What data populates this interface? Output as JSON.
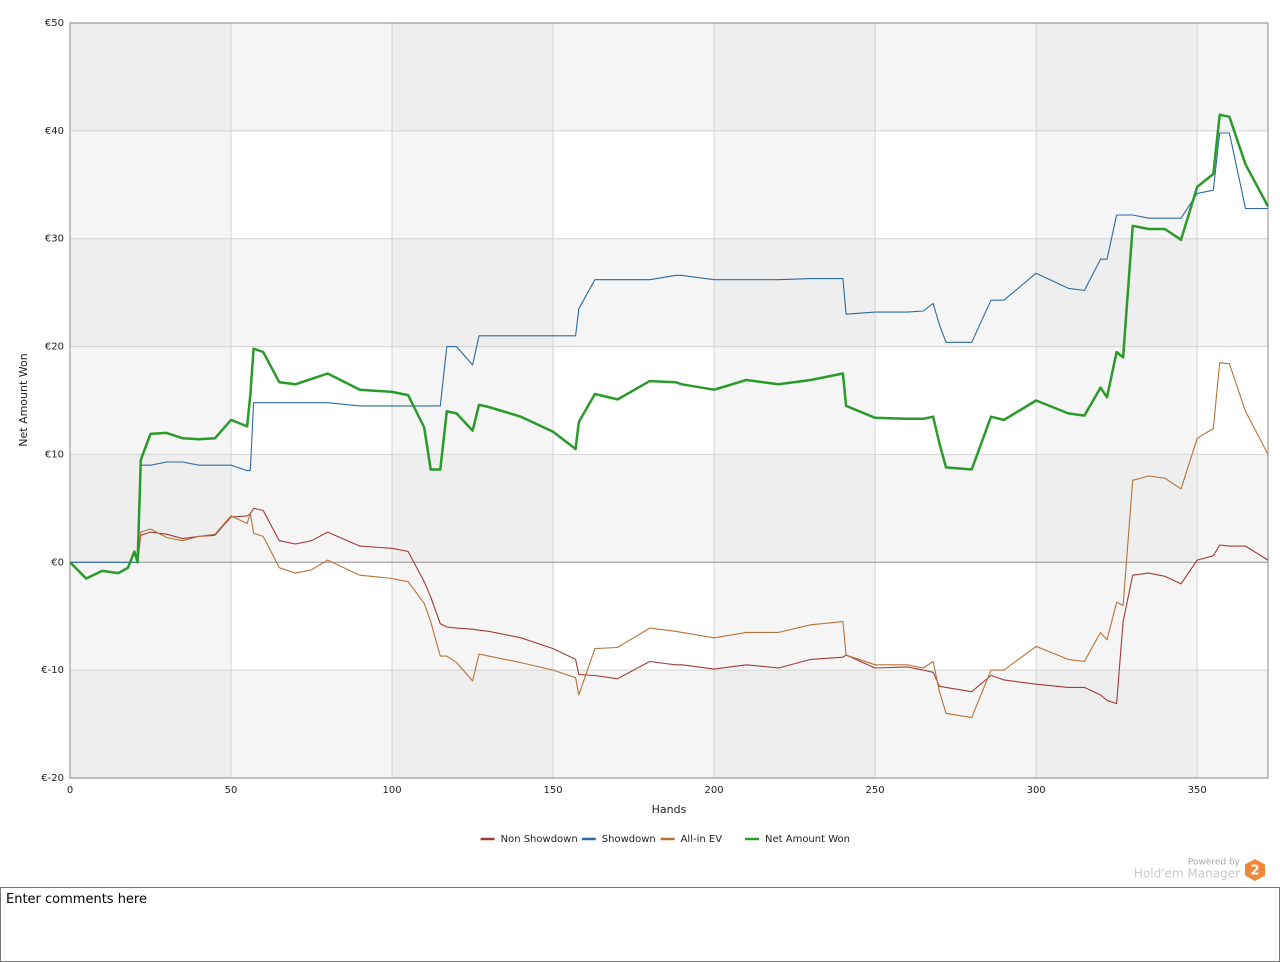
{
  "chart_data": {
    "type": "line",
    "xlabel": "Hands",
    "ylabel": "Net Amount Won",
    "xlim": [
      0,
      372
    ],
    "ylim": [
      -20,
      50
    ],
    "xticks": [
      0,
      50,
      100,
      150,
      200,
      250,
      300,
      350
    ],
    "yticks": [
      {
        "value": -20,
        "label": "€-20"
      },
      {
        "value": -10,
        "label": "€-10"
      },
      {
        "value": 0,
        "label": "€0"
      },
      {
        "value": 10,
        "label": "€10"
      },
      {
        "value": 20,
        "label": "€20"
      },
      {
        "value": 30,
        "label": "€30"
      },
      {
        "value": 40,
        "label": "€40"
      },
      {
        "value": 50,
        "label": "€50"
      }
    ],
    "grid": true,
    "legend": "bottom",
    "x": [
      0,
      5,
      10,
      15,
      18,
      20,
      21,
      22,
      25,
      30,
      35,
      40,
      45,
      50,
      55,
      56,
      57,
      60,
      65,
      70,
      75,
      80,
      90,
      100,
      105,
      110,
      112,
      115,
      117,
      120,
      125,
      127,
      130,
      140,
      150,
      157,
      158,
      163,
      170,
      180,
      188,
      190,
      200,
      210,
      220,
      230,
      240,
      241,
      250,
      260,
      265,
      268,
      270,
      272,
      280,
      286,
      290,
      300,
      310,
      315,
      320,
      322,
      325,
      327,
      330,
      335,
      340,
      345,
      350,
      355,
      357,
      360,
      365,
      372
    ],
    "series": [
      {
        "name": "Non Showdown",
        "color": "#a33a3a",
        "values": [
          0,
          -1.5,
          -0.8,
          -1,
          -0.5,
          1,
          0,
          2.5,
          2.8,
          2.6,
          2.2,
          2.4,
          2.5,
          4.2,
          4.3,
          4.5,
          5,
          4.8,
          2,
          1.7,
          2,
          2.8,
          1.5,
          1.3,
          1,
          -1.8,
          -3.2,
          -5.7,
          -6,
          -6.1,
          -6.2,
          -6.3,
          -6.4,
          -7,
          -8,
          -9,
          -10.4,
          -10.5,
          -10.8,
          -9.2,
          -9.5,
          -9.5,
          -9.9,
          -9.5,
          -9.8,
          -9,
          -8.8,
          -8.6,
          -9.8,
          -9.7,
          -10,
          -10.2,
          -11.5,
          -11.6,
          -12,
          -10.5,
          -10.9,
          -11.3,
          -11.6,
          -11.6,
          -12.3,
          -12.8,
          -13.1,
          -5.5,
          -1.2,
          -1,
          -1.3,
          -2,
          0.2,
          0.6,
          1.6,
          1.5,
          1.5,
          0.2
        ]
      },
      {
        "name": "Showdown",
        "color": "#2e6aa0",
        "values": [
          0,
          0,
          0,
          0,
          0,
          0,
          0,
          9,
          9,
          9.3,
          9.3,
          9,
          9,
          9,
          8.5,
          8.5,
          14.8,
          14.8,
          14.8,
          14.8,
          14.8,
          14.8,
          14.5,
          14.5,
          14.5,
          14.5,
          14.5,
          14.5,
          20,
          20,
          18.3,
          21,
          21,
          21,
          21,
          21,
          23.5,
          26.2,
          26.2,
          26.2,
          26.6,
          26.6,
          26.2,
          26.2,
          26.2,
          26.3,
          26.3,
          23,
          23.2,
          23.2,
          23.3,
          24,
          22,
          20.4,
          20.4,
          24.3,
          24.3,
          26.8,
          25.4,
          25.2,
          28.1,
          28.1,
          32.2,
          32.2,
          32.2,
          31.9,
          31.9,
          31.9,
          34.2,
          34.5,
          39.8,
          39.8,
          32.8,
          32.8
        ]
      },
      {
        "name": "All-in EV",
        "color": "#b5733a",
        "values": [
          0,
          -1.5,
          -0.8,
          -1,
          -0.5,
          1,
          0,
          2.8,
          3.1,
          2.3,
          2,
          2.4,
          2.6,
          4.3,
          3.6,
          4.5,
          2.7,
          2.4,
          -0.5,
          -1,
          -0.7,
          0.2,
          -1.2,
          -1.5,
          -1.8,
          -3.8,
          -5.5,
          -8.7,
          -8.7,
          -9.3,
          -11,
          -8.5,
          -8.7,
          -9.3,
          -10,
          -10.7,
          -12.3,
          -8,
          -7.9,
          -6.1,
          -6.4,
          -6.5,
          -7,
          -6.5,
          -6.5,
          -5.8,
          -5.5,
          -8.6,
          -9.5,
          -9.5,
          -9.8,
          -9.2,
          -12,
          -14,
          -14.4,
          -10,
          -10,
          -7.8,
          -9,
          -9.2,
          -6.5,
          -7.2,
          -3.7,
          -4,
          7.6,
          8,
          7.8,
          6.8,
          11.5,
          12.4,
          18.5,
          18.4,
          14,
          10
        ]
      },
      {
        "name": "Net Amount Won",
        "color": "#2a9a2a",
        "values": [
          0,
          -1.5,
          -0.8,
          -1,
          -0.5,
          1,
          0,
          9.5,
          11.9,
          12,
          11.5,
          11.4,
          11.5,
          13.2,
          12.6,
          15.5,
          19.8,
          19.5,
          16.7,
          16.5,
          17,
          17.5,
          16,
          15.8,
          15.5,
          12.5,
          8.6,
          8.6,
          14,
          13.8,
          12.2,
          14.6,
          14.4,
          13.5,
          12.1,
          10.5,
          13,
          15.6,
          15.1,
          16.8,
          16.7,
          16.5,
          16,
          16.9,
          16.5,
          16.9,
          17.5,
          14.5,
          13.4,
          13.3,
          13.3,
          13.5,
          11,
          8.8,
          8.6,
          13.5,
          13.2,
          15,
          13.8,
          13.6,
          16.2,
          15.3,
          19.5,
          19,
          31.2,
          30.9,
          30.9,
          29.9,
          34.8,
          36,
          41.5,
          41.3,
          36.9,
          33
        ]
      }
    ]
  },
  "footer": {
    "powered_by": "Powered by",
    "product": "Hold'em Manager",
    "badge": "2"
  },
  "comments": {
    "placeholder": "Enter comments here"
  }
}
